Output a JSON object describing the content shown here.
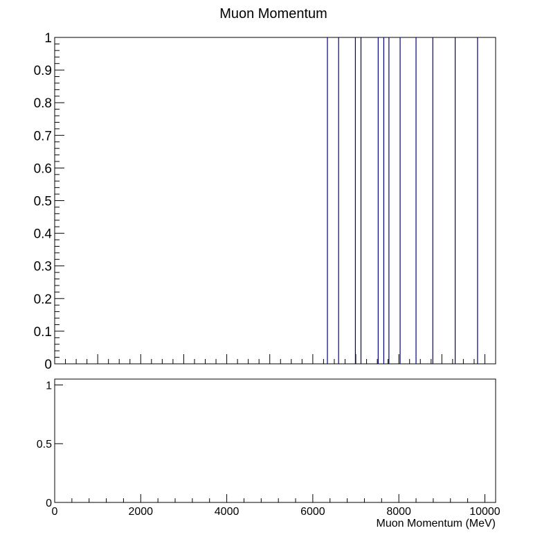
{
  "chart_data": [
    {
      "type": "bar",
      "title": "Muon Momentum",
      "xlabel": "",
      "ylabel": "",
      "xlim": [
        0,
        10250
      ],
      "ylim": [
        0,
        1
      ],
      "y_ticks": [
        "0",
        "0.1",
        "0.2",
        "0.3",
        "0.4",
        "0.5",
        "0.6",
        "0.7",
        "0.8",
        "0.9",
        "1"
      ],
      "grid": false,
      "legend": "none",
      "bar_color": "#00007f",
      "x": [
        6340,
        6600,
        6990,
        7120,
        7520,
        7650,
        7770,
        8030,
        8400,
        8790,
        9310,
        9830
      ],
      "values": [
        1,
        1,
        1,
        1,
        1,
        1,
        1,
        1,
        1,
        1,
        1,
        1
      ]
    },
    {
      "type": "line",
      "title": "",
      "xlabel": "Muon Momentum (MeV)",
      "ylabel": "",
      "xlim": [
        0,
        10250
      ],
      "ylim": [
        0,
        1.05
      ],
      "x_ticks": [
        "0",
        "2000",
        "4000",
        "6000",
        "8000",
        "10000"
      ],
      "y_ticks": [
        "0",
        "0.5",
        "1"
      ],
      "grid": false,
      "legend": "none",
      "series": []
    }
  ]
}
